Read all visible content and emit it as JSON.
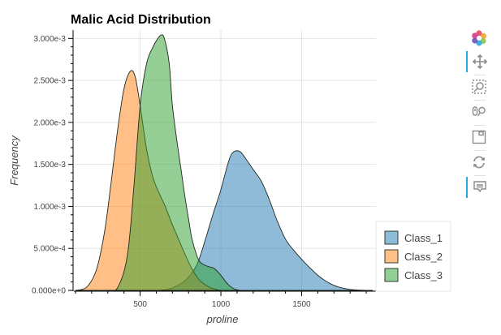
{
  "chart_data": {
    "type": "area",
    "title": "Malic Acid Distribution",
    "xlabel": "proline",
    "ylabel": "Frequency",
    "xlim": [
      90,
      1960
    ],
    "ylim": [
      0,
      0.0031
    ],
    "x_ticks": [
      500,
      1000,
      1500
    ],
    "x_tick_labels": [
      "500",
      "1000",
      "1500"
    ],
    "y_ticks": [
      0,
      0.0005,
      0.001,
      0.0015,
      0.002,
      0.0025,
      0.003
    ],
    "y_tick_labels": [
      "0.000e+0",
      "5.000e-4",
      "1.000e-3",
      "1.500e-3",
      "2.000e-3",
      "2.500e-3",
      "3.000e-3"
    ],
    "legend_position": "bottom-right",
    "series": [
      {
        "name": "Class_1",
        "color": "#1f77b4",
        "x": [
          620,
          700,
          780,
          850,
          900,
          950,
          1000,
          1050,
          1080,
          1120,
          1160,
          1200,
          1250,
          1300,
          1350,
          1400,
          1450,
          1500,
          1550,
          1600,
          1650,
          1700,
          1750,
          1800,
          1850,
          1900,
          1940
        ],
        "y": [
          0,
          3e-05,
          0.00012,
          0.0003,
          0.00058,
          0.0009,
          0.0012,
          0.00155,
          0.00165,
          0.00165,
          0.00155,
          0.00144,
          0.0013,
          0.00108,
          0.00082,
          0.00061,
          0.00048,
          0.00037,
          0.00027,
          0.00018,
          0.00011,
          6e-05,
          3e-05,
          1.2e-05,
          4e-06,
          1e-06,
          0
        ]
      },
      {
        "name": "Class_2",
        "color": "#ff7f0e",
        "x": [
          100,
          170,
          230,
          280,
          320,
          360,
          400,
          440,
          470,
          500,
          540,
          580,
          620,
          660,
          700,
          740,
          780,
          820,
          860,
          900,
          940,
          980,
          1000
        ],
        "y": [
          0,
          4e-05,
          0.00025,
          0.0007,
          0.00128,
          0.0019,
          0.0024,
          0.00261,
          0.00254,
          0.0022,
          0.00168,
          0.00134,
          0.00115,
          0.00098,
          0.00078,
          0.0006,
          0.00042,
          0.00026,
          0.00014,
          7e-05,
          3e-05,
          8e-06,
          0
        ]
      },
      {
        "name": "Class_3",
        "color": "#2ca02c",
        "x": [
          300,
          360,
          420,
          460,
          500,
          540,
          580,
          610,
          630,
          650,
          680,
          700,
          730,
          760,
          780,
          800,
          820,
          850,
          870,
          900,
          930,
          960,
          1000,
          1040,
          1080,
          1120
        ],
        "y": [
          0,
          3e-05,
          0.0004,
          0.0012,
          0.0022,
          0.0027,
          0.0029,
          0.003,
          0.00304,
          0.003,
          0.0027,
          0.0022,
          0.00175,
          0.00135,
          0.00108,
          0.00085,
          0.00062,
          0.00042,
          0.00034,
          0.0003,
          0.00028,
          0.00026,
          0.00018,
          8e-05,
          2e-05,
          0
        ]
      }
    ]
  },
  "toolbar": {
    "logo_icon": "bokeh-logo-icon",
    "tools": [
      {
        "icon": "pan-icon",
        "active": true
      },
      {
        "icon": "box-zoom-icon",
        "active": false
      },
      {
        "icon": "wheel-zoom-icon",
        "active": false
      },
      {
        "icon": "save-icon",
        "active": false
      },
      {
        "icon": "reset-icon",
        "active": false
      },
      {
        "icon": "hover-icon",
        "active": true
      }
    ]
  }
}
